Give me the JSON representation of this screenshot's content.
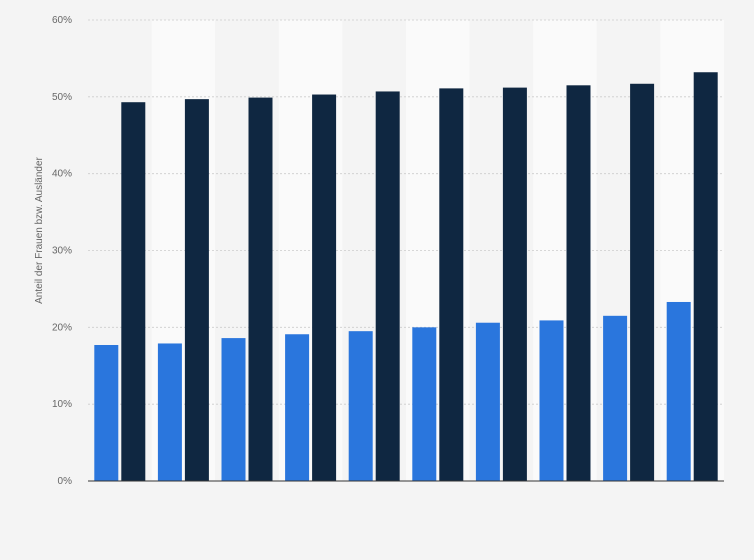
{
  "chart_data": {
    "type": "bar",
    "title": "",
    "xlabel": "",
    "ylabel": "Anteil der Frauen bzw. Ausländer",
    "categories": [
      "",
      "",
      "",
      "",
      "",
      "",
      "",
      "",
      "",
      ""
    ],
    "series": [
      {
        "values": [
          17.7,
          17.9,
          18.6,
          19.1,
          19.5,
          20.0,
          20.6,
          20.9,
          21.5,
          23.3
        ]
      },
      {
        "values": [
          49.3,
          49.7,
          49.9,
          50.3,
          50.7,
          51.1,
          51.2,
          51.5,
          51.7,
          53.2
        ]
      }
    ],
    "ylim": [
      0,
      60
    ],
    "yticks": [
      0,
      10,
      20,
      30,
      40,
      50,
      60
    ],
    "ytick_labels": [
      "0%",
      "10%",
      "20%",
      "30%",
      "40%",
      "50%",
      "60%"
    ],
    "grid": true,
    "legend": "none",
    "colors": {
      "series": [
        "#2a76dd",
        "#0f2741"
      ],
      "band_light": "#fafafa",
      "band_dark": "#f4f4f4",
      "grid": "#cccccc",
      "axis": "#333333",
      "text": "#666666"
    }
  }
}
